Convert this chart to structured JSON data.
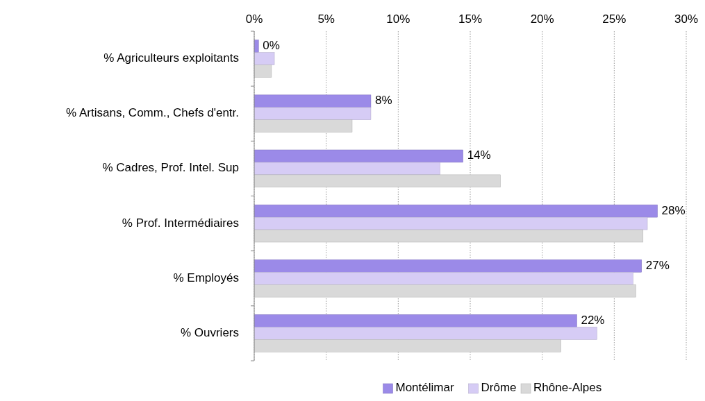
{
  "chart_data": {
    "type": "bar",
    "orientation": "horizontal",
    "categories": [
      "% Agriculteurs exploitants",
      "% Artisans, Comm., Chefs d'entr.",
      "% Cadres, Prof. Intel. Sup",
      "% Prof. Intermédiaires",
      "% Employés",
      "% Ouvriers"
    ],
    "series": [
      {
        "name": "Montélimar",
        "color": "#9b8ae8",
        "values": [
          0.3,
          8.1,
          14.5,
          28.0,
          26.9,
          22.4
        ],
        "value_labels": [
          "0%",
          "8%",
          "14%",
          "28%",
          "27%",
          "22%"
        ]
      },
      {
        "name": "Drôme",
        "color": "#d6ccf5",
        "values": [
          1.4,
          8.1,
          12.9,
          27.3,
          26.3,
          23.8
        ]
      },
      {
        "name": "Rhône-Alpes",
        "color": "#d9d9d9",
        "values": [
          1.2,
          6.8,
          17.1,
          27.0,
          26.5,
          21.3
        ]
      }
    ],
    "xlim": [
      0,
      30
    ],
    "xticks": [
      {
        "value": 0,
        "label": "0%"
      },
      {
        "value": 5,
        "label": "5%"
      },
      {
        "value": 10,
        "label": "10%"
      },
      {
        "value": 15,
        "label": "15%"
      },
      {
        "value": 20,
        "label": "20%"
      },
      {
        "value": 25,
        "label": "25%"
      },
      {
        "value": 30,
        "label": "30%"
      }
    ],
    "grid": "x",
    "legend": "bottom"
  }
}
